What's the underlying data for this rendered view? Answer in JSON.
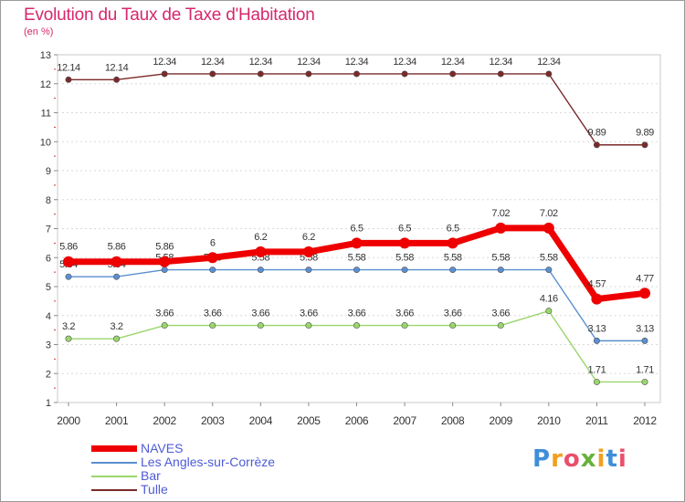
{
  "header": {
    "title": "Evolution du Taux de Taxe d'Habitation",
    "subtitle": "(en %)"
  },
  "chart_data": {
    "type": "line",
    "title": "Evolution du Taux de Taxe d'Habitation",
    "subtitle": "(en %)",
    "x": [
      "2000",
      "2001",
      "2002",
      "2003",
      "2004",
      "2005",
      "2006",
      "2007",
      "2008",
      "2009",
      "2010",
      "2011",
      "2012"
    ],
    "ylim": [
      1,
      13
    ],
    "yticks": [
      "1",
      "2",
      "3",
      "4",
      "5",
      "6",
      "7",
      "8",
      "9",
      "10",
      "11",
      "12",
      "13"
    ],
    "grid": "horizontal",
    "legend_position": "bottom-left",
    "series": [
      {
        "name": "Tulle",
        "color": "#7a2a2a",
        "values": [
          12.14,
          12.14,
          12.34,
          12.34,
          12.34,
          12.34,
          12.34,
          12.34,
          12.34,
          12.34,
          12.34,
          9.89,
          9.89
        ],
        "labels": [
          "12.14",
          "12.14",
          "12.34",
          "12.34",
          "12.34",
          "12.34",
          "12.34",
          "12.34",
          "12.34",
          "12.34",
          "12.34",
          "9.89",
          "9.89"
        ]
      },
      {
        "name": "Les Angles-sur-Corrèze",
        "color": "#5b8fd0",
        "values": [
          5.34,
          5.34,
          5.58,
          5.58,
          5.58,
          5.58,
          5.58,
          5.58,
          5.58,
          5.58,
          5.58,
          3.13,
          3.13
        ],
        "labels": [
          "5.34",
          "5.34",
          "5.58",
          "5.58",
          "5.58",
          "5.58",
          "5.58",
          "5.58",
          "5.58",
          "5.58",
          "5.58",
          "3.13",
          "3.13"
        ]
      },
      {
        "name": "Bar",
        "color": "#99d66c",
        "values": [
          3.2,
          3.2,
          3.66,
          3.66,
          3.66,
          3.66,
          3.66,
          3.66,
          3.66,
          3.66,
          4.16,
          1.71,
          1.71
        ],
        "labels": [
          "3.2",
          "3.2",
          "3.66",
          "3.66",
          "3.66",
          "3.66",
          "3.66",
          "3.66",
          "3.66",
          "3.66",
          "4.16",
          "1.71",
          "1.71"
        ]
      },
      {
        "name": "NAVES",
        "color": "#ee0000",
        "values": [
          5.86,
          5.86,
          5.86,
          6,
          6.2,
          6.2,
          6.5,
          6.5,
          6.5,
          7.02,
          7.02,
          4.57,
          4.77
        ],
        "labels": [
          "5.86",
          "5.86",
          "5.86",
          "6",
          "6.2",
          "6.2",
          "6.5",
          "6.5",
          "6.5",
          "7.02",
          "7.02",
          "4.57",
          "4.77"
        ]
      }
    ]
  },
  "legend": {
    "items": [
      {
        "name": "NAVES",
        "color": "#ee0000"
      },
      {
        "name": "Les Angles-sur-Corrèze",
        "color": "#5b8fd0"
      },
      {
        "name": "Bar",
        "color": "#99d66c"
      },
      {
        "name": "Tulle",
        "color": "#7a2a2a"
      }
    ]
  },
  "logo": {
    "text": "Proxiti",
    "letters": [
      "P",
      "r",
      "o",
      "x",
      "i",
      "t",
      "i"
    ],
    "colors": [
      "#3f8fd8",
      "#f0a020",
      "#e94f6c",
      "#66b23a",
      "#f0a020",
      "#3f8fd8",
      "#e94f6c"
    ]
  }
}
